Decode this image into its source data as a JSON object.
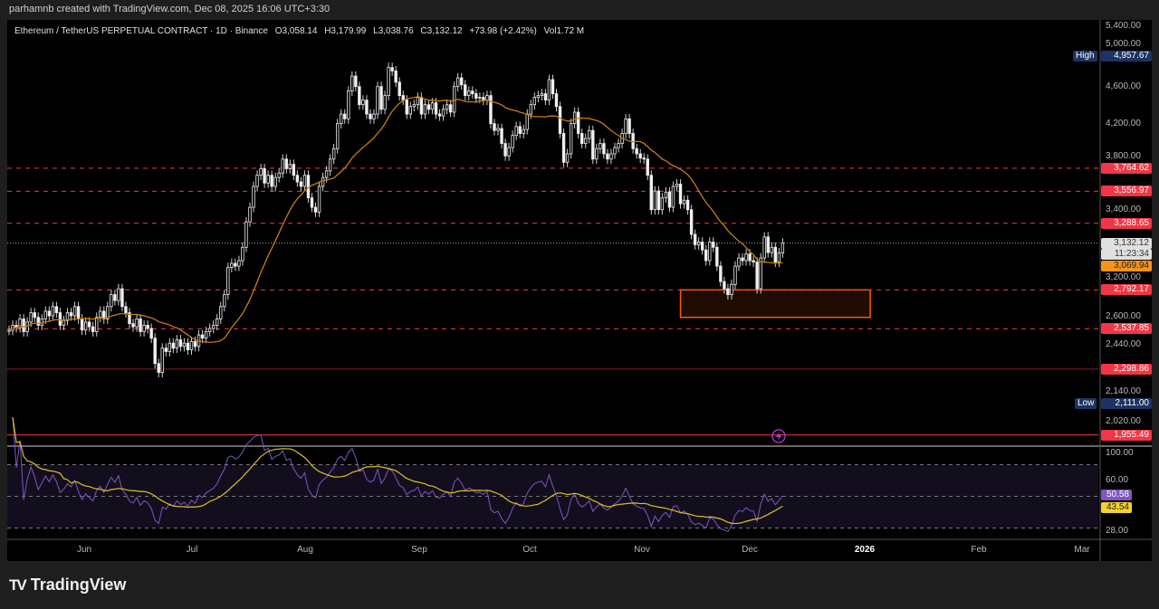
{
  "credit": "parhamnb created with TradingView.com, Dec 08, 2025 16:06 UTC+3:30",
  "legend": {
    "symbol": "Ethereum / TetherUS PERPETUAL CONTRACT · 1D · Binance",
    "open": "O3,058.14",
    "high": "H3,179.99",
    "low": "L3,038.76",
    "close": "C3,132.12",
    "change": "+73.98 (+2.42%)",
    "volume": "Vol1.72 M"
  },
  "brand": "TradingView",
  "colors": {
    "bg": "#000000",
    "candle": "#ffffff",
    "ma": "#c77d0a",
    "rsi": "#7e57c2",
    "rsi_ma": "#e0c020",
    "level": "#f23645",
    "zone": "#ff5a00",
    "high_low_tag": "#1c3363"
  },
  "chart_data": [
    {
      "type": "candlestick",
      "interval": "1D",
      "first_date": "2025-05-10",
      "scale": "log",
      "price_ticks": [
        "5,400.00",
        "5,000.00",
        "4,600.00",
        "4,200.00",
        "3,800.00",
        "3,400.00",
        "3,200.00",
        "2,600.00",
        "2,440.00",
        "2,140.00",
        "2,020.00"
      ],
      "time_ticks": [
        "Jun",
        "Jul",
        "Aug",
        "Sep",
        "Oct",
        "Nov",
        "Dec",
        "2026",
        "Feb",
        "Mar"
      ],
      "closes": [
        2528,
        2560,
        2545,
        2600,
        2520,
        2580,
        2640,
        2610,
        2560,
        2600,
        2650,
        2620,
        2680,
        2640,
        2560,
        2590,
        2640,
        2620,
        2680,
        2600,
        2530,
        2580,
        2550,
        2520,
        2610,
        2650,
        2600,
        2680,
        2760,
        2720,
        2800,
        2680,
        2640,
        2570,
        2550,
        2600,
        2520,
        2560,
        2540,
        2480,
        2330,
        2280,
        2420,
        2400,
        2450,
        2420,
        2470,
        2430,
        2450,
        2410,
        2460,
        2430,
        2500,
        2480,
        2520,
        2540,
        2560,
        2600,
        2680,
        2760,
        2950,
        2980,
        2960,
        3000,
        3100,
        3300,
        3420,
        3600,
        3700,
        3760,
        3630,
        3700,
        3600,
        3680,
        3720,
        3850,
        3760,
        3800,
        3700,
        3640,
        3600,
        3700,
        3500,
        3420,
        3380,
        3600,
        3680,
        3740,
        3850,
        3950,
        4200,
        4300,
        4250,
        4550,
        4720,
        4600,
        4400,
        4450,
        4300,
        4250,
        4300,
        4600,
        4350,
        4500,
        4820,
        4780,
        4650,
        4500,
        4450,
        4300,
        4380,
        4400,
        4480,
        4300,
        4400,
        4350,
        4420,
        4300,
        4280,
        4350,
        4400,
        4320,
        4600,
        4700,
        4620,
        4500,
        4550,
        4520,
        4470,
        4480,
        4450,
        4500,
        4200,
        4130,
        4150,
        4000,
        3880,
        3960,
        4080,
        4170,
        4100,
        4140,
        4300,
        4400,
        4480,
        4500,
        4520,
        4450,
        4680,
        4520,
        4380,
        4100,
        3820,
        3900,
        4200,
        4320,
        4100,
        4000,
        4050,
        4130,
        3850,
        3950,
        4000,
        3900,
        3850,
        3900,
        3960,
        4000,
        4100,
        4250,
        4100,
        3950,
        3900,
        3860,
        3850,
        3700,
        3400,
        3560,
        3400,
        3500,
        3550,
        3420,
        3600,
        3620,
        3450,
        3480,
        3400,
        3200,
        3120,
        3140,
        3080,
        3000,
        3140,
        3100,
        2960,
        2850,
        2800,
        2760,
        2830,
        2960,
        3020,
        3000,
        3050,
        3000,
        2990,
        2800,
        3020,
        3180,
        3060,
        3100,
        2990,
        3058.14,
        3132.12
      ],
      "last_price": "3,132.12",
      "countdown": "11:23:34",
      "ma_value": "3,069.94",
      "high": {
        "label": "High",
        "value": "4,957.67"
      },
      "low": {
        "label": "Low",
        "value": "2,111.00"
      },
      "levels": [
        {
          "price": 3764.62,
          "label": "3,764.62",
          "style": "dashed"
        },
        {
          "price": 3556.97,
          "label": "3,556.97",
          "style": "dashed"
        },
        {
          "price": 3288.65,
          "label": "3,288.65",
          "style": "dashed"
        },
        {
          "price": 2792.17,
          "label": "2,792.17",
          "style": "dashed"
        },
        {
          "price": 2537.85,
          "label": "2,537.85",
          "style": "dashed"
        },
        {
          "price": 2298.86,
          "label": "2,298.86",
          "style": "solid"
        },
        {
          "price": 1955.49,
          "label": "1,955.49",
          "style": "solid"
        }
      ],
      "zone": {
        "top": 2792.17,
        "bottom": 2610,
        "start": "2025-11-10",
        "end": "2026-01-01"
      }
    },
    {
      "type": "line",
      "pane": "RSI",
      "ticks": [
        "100.00",
        "60.00",
        "28.00"
      ],
      "rsi_value": "50.58",
      "rsi_ma_value": "43.54",
      "bands": [
        70,
        50,
        30
      ]
    }
  ]
}
